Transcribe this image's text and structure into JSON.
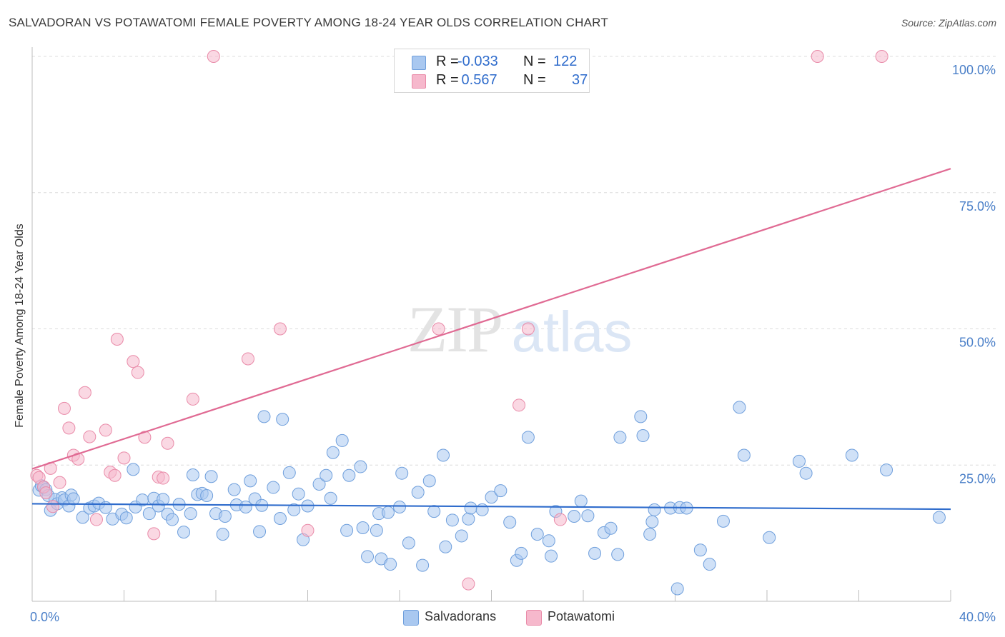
{
  "chart_data": {
    "type": "scatter",
    "title": "SALVADORAN VS POTAWATOMI FEMALE POVERTY AMONG 18-24 YEAR OLDS CORRELATION CHART",
    "source": "Source: ZipAtlas.com",
    "xlabel": "",
    "ylabel": "Female Poverty Among 18-24 Year Olds",
    "xlim": [
      0,
      40
    ],
    "ylim": [
      0,
      100
    ],
    "x_tick_labels": [
      "0.0%",
      "40.0%"
    ],
    "y_ticks": [
      25,
      50,
      75,
      100
    ],
    "y_tick_labels": [
      "25.0%",
      "50.0%",
      "75.0%",
      "100.0%"
    ],
    "grid": true,
    "watermark": "ZIPatlas",
    "legend": [
      {
        "name": "Salvadorans",
        "r_label": "R =",
        "r_value": "-0.033",
        "n_label": "N =",
        "n_value": "122",
        "color": "#a9c8f0"
      },
      {
        "name": "Potawatomi",
        "r_label": "R =",
        "r_value": " 0.567",
        "n_label": "N =",
        "n_value": "37",
        "color": "#f6b8cc"
      }
    ],
    "series": [
      {
        "name": "Salvadorans",
        "color": "#a9c8f0",
        "stroke": "#6f9fdc",
        "trend": {
          "x": [
            0,
            40
          ],
          "y": [
            17.9,
            16.9
          ],
          "color": "#2f6ccc"
        },
        "points": [
          [
            0.3,
            20.4
          ],
          [
            0.4,
            21.2
          ],
          [
            0.5,
            20.9
          ],
          [
            0.6,
            20.5
          ],
          [
            0.7,
            19.4
          ],
          [
            0.8,
            16.7
          ],
          [
            1.0,
            18.7
          ],
          [
            1.1,
            17.9
          ],
          [
            1.3,
            19.0
          ],
          [
            1.4,
            18.6
          ],
          [
            1.6,
            17.5
          ],
          [
            1.7,
            19.5
          ],
          [
            1.8,
            18.8
          ],
          [
            2.2,
            15.4
          ],
          [
            2.5,
            17.1
          ],
          [
            2.7,
            17.5
          ],
          [
            2.9,
            18.0
          ],
          [
            3.2,
            17.2
          ],
          [
            3.5,
            15.1
          ],
          [
            3.9,
            16.0
          ],
          [
            4.1,
            15.3
          ],
          [
            4.4,
            24.2
          ],
          [
            4.5,
            17.3
          ],
          [
            4.8,
            18.6
          ],
          [
            5.1,
            16.1
          ],
          [
            5.3,
            18.9
          ],
          [
            5.5,
            17.5
          ],
          [
            5.7,
            18.7
          ],
          [
            5.9,
            16.0
          ],
          [
            6.1,
            15.0
          ],
          [
            6.4,
            17.8
          ],
          [
            6.6,
            12.7
          ],
          [
            6.9,
            16.1
          ],
          [
            7.0,
            23.2
          ],
          [
            7.2,
            19.6
          ],
          [
            7.4,
            19.8
          ],
          [
            7.6,
            19.4
          ],
          [
            7.8,
            22.9
          ],
          [
            8.0,
            16.1
          ],
          [
            8.3,
            12.3
          ],
          [
            8.4,
            15.6
          ],
          [
            8.8,
            20.5
          ],
          [
            8.9,
            17.7
          ],
          [
            9.3,
            17.3
          ],
          [
            9.5,
            22.1
          ],
          [
            9.7,
            18.8
          ],
          [
            9.9,
            12.8
          ],
          [
            10.0,
            17.6
          ],
          [
            10.1,
            33.9
          ],
          [
            10.5,
            20.9
          ],
          [
            10.8,
            15.2
          ],
          [
            10.9,
            33.4
          ],
          [
            11.2,
            23.6
          ],
          [
            11.4,
            16.8
          ],
          [
            11.6,
            19.7
          ],
          [
            11.8,
            11.3
          ],
          [
            12.0,
            17.5
          ],
          [
            12.5,
            21.5
          ],
          [
            12.8,
            23.1
          ],
          [
            13.0,
            18.9
          ],
          [
            13.1,
            27.3
          ],
          [
            13.5,
            29.5
          ],
          [
            13.7,
            13.0
          ],
          [
            13.8,
            23.1
          ],
          [
            14.3,
            24.7
          ],
          [
            14.4,
            13.5
          ],
          [
            14.6,
            8.2
          ],
          [
            15.0,
            13.0
          ],
          [
            15.1,
            16.1
          ],
          [
            15.2,
            7.8
          ],
          [
            15.5,
            16.3
          ],
          [
            15.6,
            6.8
          ],
          [
            16.0,
            17.3
          ],
          [
            16.1,
            23.5
          ],
          [
            16.4,
            10.7
          ],
          [
            16.8,
            20.0
          ],
          [
            17.0,
            6.6
          ],
          [
            17.3,
            22.1
          ],
          [
            17.5,
            16.5
          ],
          [
            17.9,
            26.8
          ],
          [
            18.0,
            10.0
          ],
          [
            18.3,
            14.9
          ],
          [
            18.7,
            12.0
          ],
          [
            19.0,
            15.1
          ],
          [
            19.1,
            17.1
          ],
          [
            19.6,
            16.8
          ],
          [
            20.0,
            19.1
          ],
          [
            20.4,
            20.3
          ],
          [
            20.8,
            14.5
          ],
          [
            21.1,
            7.5
          ],
          [
            21.3,
            8.8
          ],
          [
            21.6,
            30.1
          ],
          [
            22.0,
            12.3
          ],
          [
            22.5,
            11.1
          ],
          [
            22.6,
            8.3
          ],
          [
            22.8,
            16.5
          ],
          [
            23.6,
            15.6
          ],
          [
            23.9,
            18.4
          ],
          [
            24.2,
            15.7
          ],
          [
            24.9,
            12.6
          ],
          [
            25.2,
            13.4
          ],
          [
            24.5,
            8.8
          ],
          [
            25.5,
            8.6
          ],
          [
            25.6,
            30.1
          ],
          [
            26.5,
            33.9
          ],
          [
            26.6,
            30.4
          ],
          [
            26.9,
            12.3
          ],
          [
            27.0,
            14.6
          ],
          [
            27.1,
            16.8
          ],
          [
            27.8,
            17.1
          ],
          [
            28.2,
            17.2
          ],
          [
            28.5,
            17.1
          ],
          [
            28.1,
            2.3
          ],
          [
            29.1,
            9.4
          ],
          [
            29.5,
            6.8
          ],
          [
            30.1,
            14.7
          ],
          [
            30.8,
            35.6
          ],
          [
            31.0,
            26.8
          ],
          [
            32.1,
            11.7
          ],
          [
            33.4,
            25.7
          ],
          [
            33.7,
            23.5
          ],
          [
            35.7,
            26.8
          ],
          [
            37.2,
            24.1
          ],
          [
            39.5,
            15.4
          ]
        ]
      },
      {
        "name": "Potawatomi",
        "color": "#f6b8cc",
        "stroke": "#e98aa8",
        "trend": {
          "x": [
            0,
            40
          ],
          "y": [
            24.3,
            79.4
          ],
          "color": "#e06a93"
        },
        "points": [
          [
            0.2,
            23.1
          ],
          [
            0.3,
            22.7
          ],
          [
            0.5,
            21.0
          ],
          [
            0.6,
            19.9
          ],
          [
            0.8,
            24.4
          ],
          [
            0.9,
            17.4
          ],
          [
            1.2,
            21.8
          ],
          [
            1.4,
            35.4
          ],
          [
            1.6,
            31.8
          ],
          [
            1.8,
            26.8
          ],
          [
            2.0,
            26.1
          ],
          [
            2.3,
            38.3
          ],
          [
            2.5,
            30.2
          ],
          [
            2.8,
            15.0
          ],
          [
            3.2,
            31.4
          ],
          [
            3.4,
            23.7
          ],
          [
            3.6,
            23.1
          ],
          [
            3.7,
            48.1
          ],
          [
            4.0,
            26.3
          ],
          [
            4.4,
            44.0
          ],
          [
            4.6,
            42.0
          ],
          [
            4.9,
            30.1
          ],
          [
            5.3,
            12.4
          ],
          [
            5.5,
            22.8
          ],
          [
            5.7,
            22.6
          ],
          [
            5.9,
            29.0
          ],
          [
            7.0,
            37.1
          ],
          [
            7.9,
            100.0
          ],
          [
            9.4,
            44.5
          ],
          [
            10.8,
            50.0
          ],
          [
            12.0,
            13.0
          ],
          [
            17.7,
            50.0
          ],
          [
            19.0,
            3.2
          ],
          [
            21.2,
            36.0
          ],
          [
            21.6,
            50.0
          ],
          [
            23.0,
            15.0
          ],
          [
            34.2,
            100.0
          ],
          [
            37.0,
            100.0
          ]
        ]
      }
    ]
  }
}
